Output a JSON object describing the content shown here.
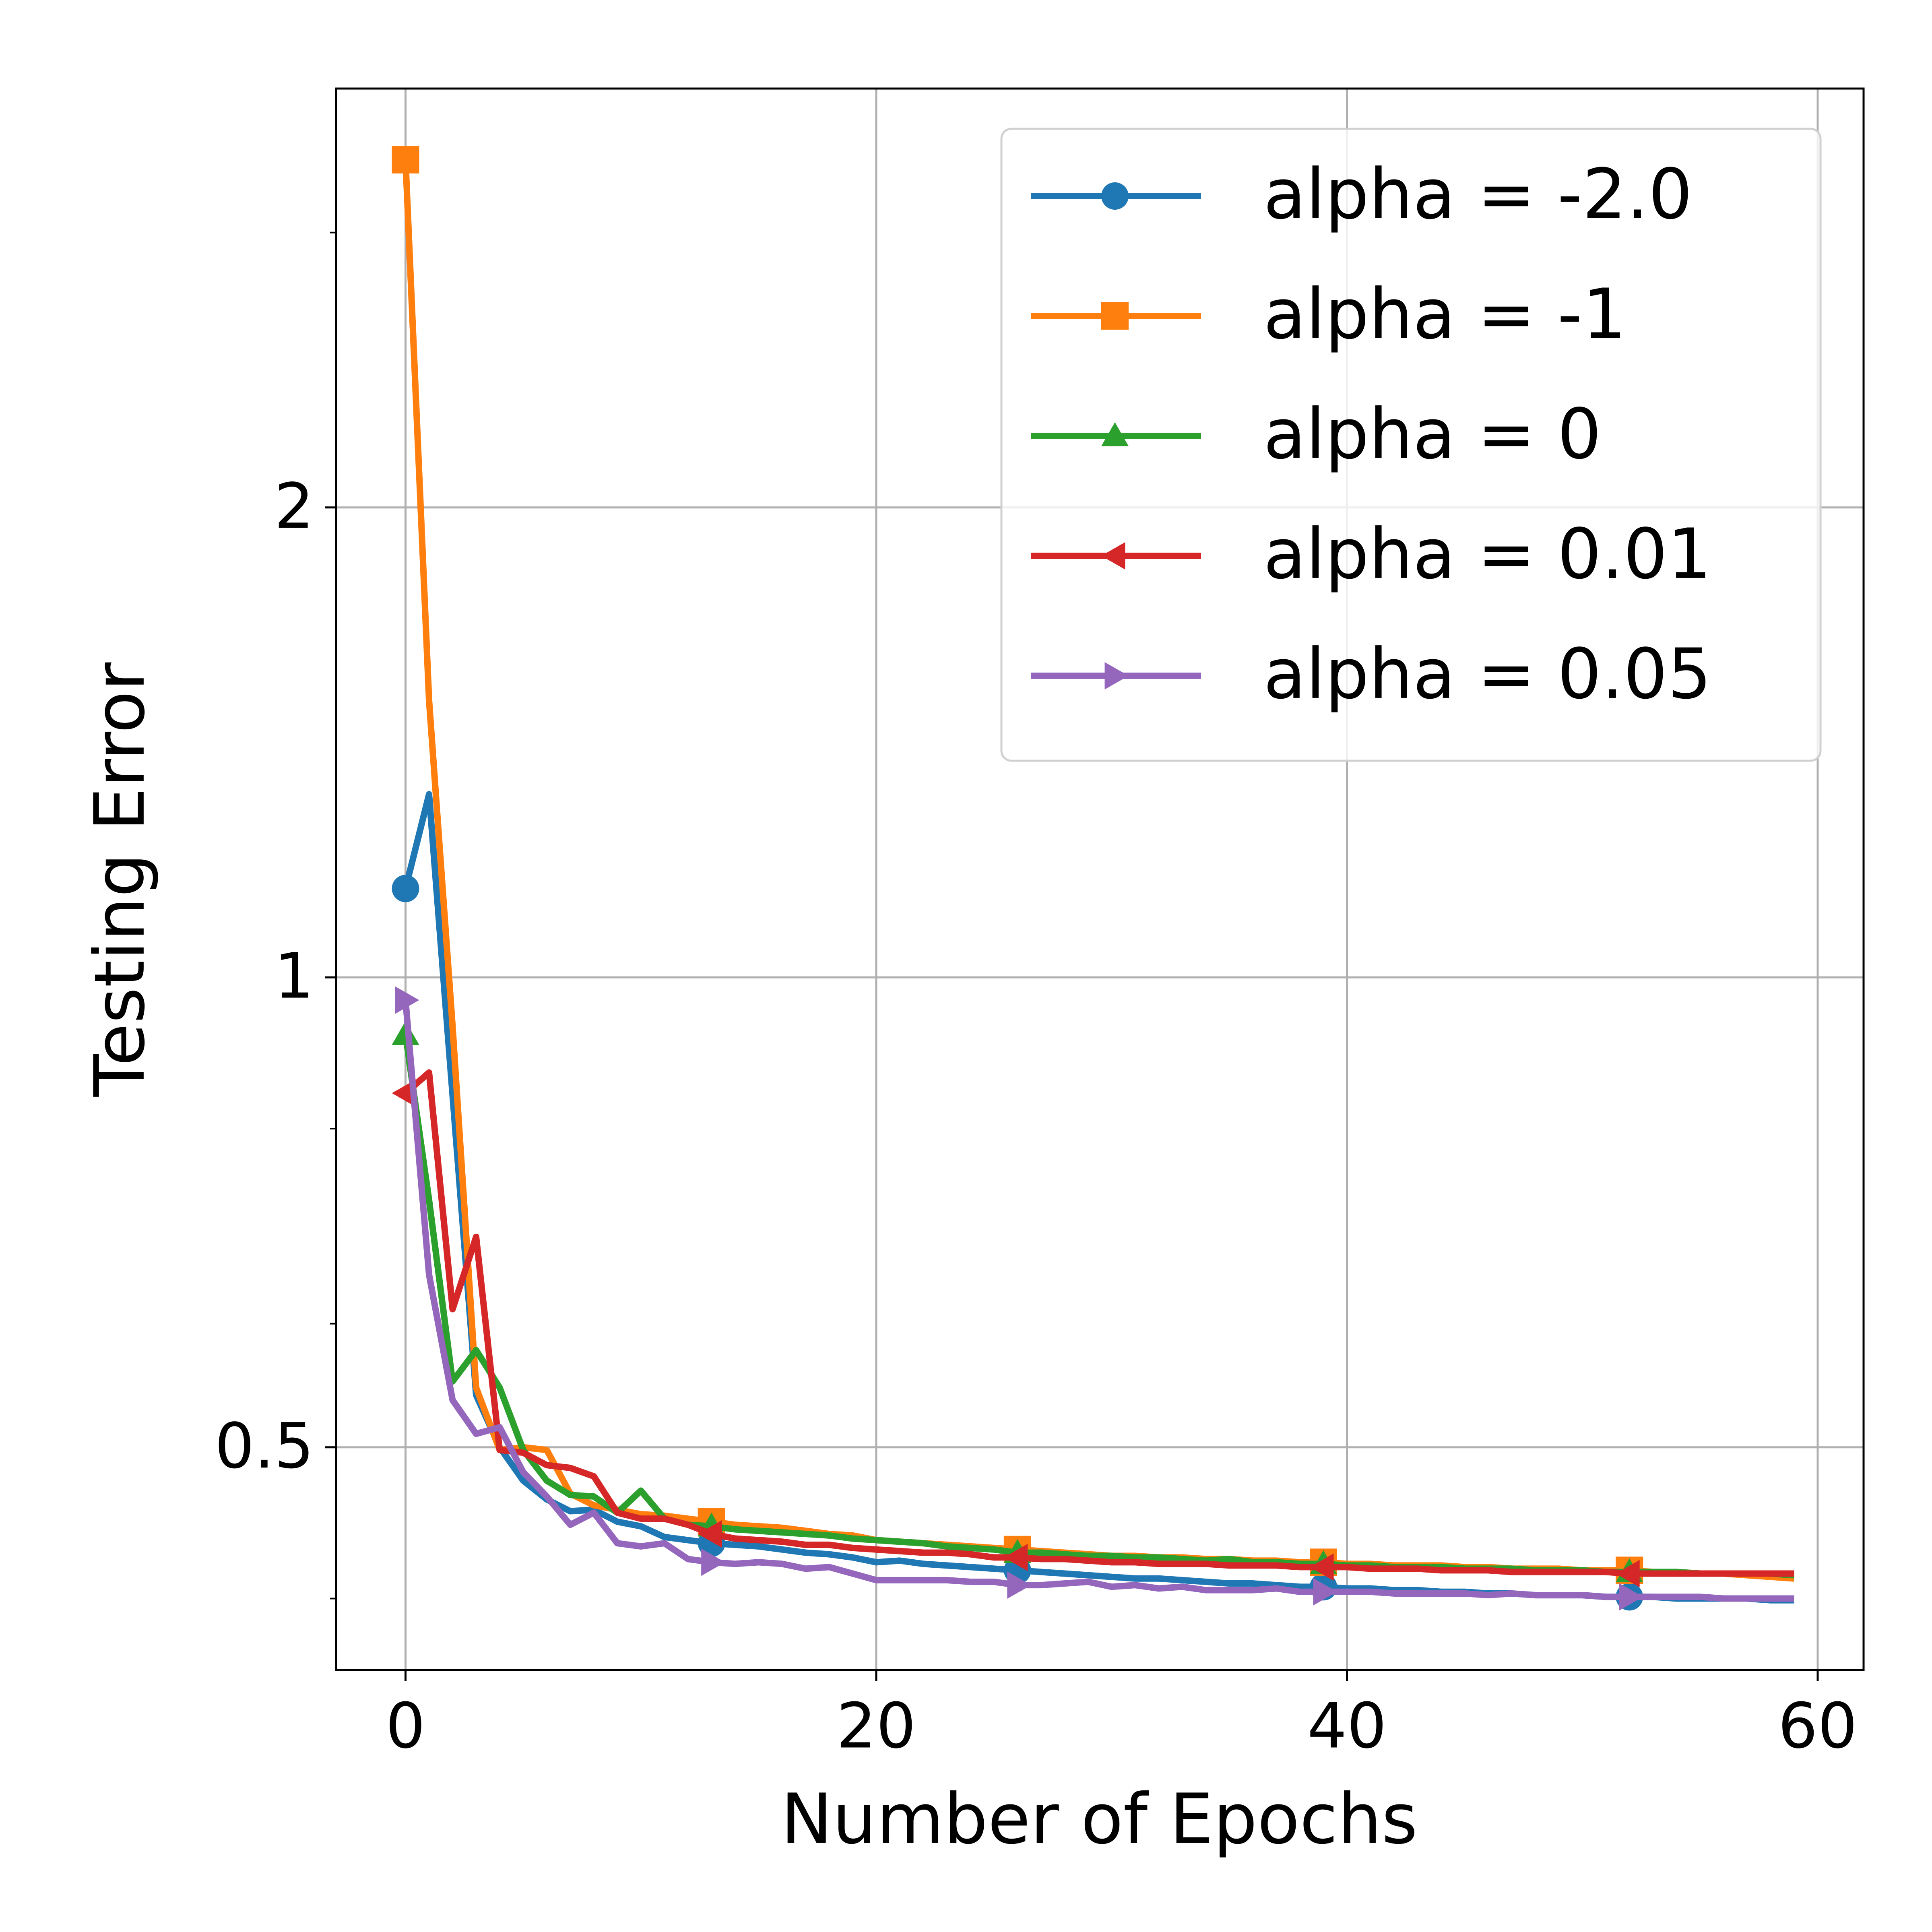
{
  "chart_data": {
    "type": "line",
    "xlabel": "Number of Epochs",
    "ylabel": "Testing Error",
    "x": [
      0,
      1,
      2,
      3,
      4,
      5,
      6,
      7,
      8,
      9,
      10,
      11,
      12,
      13,
      14,
      15,
      16,
      17,
      18,
      19,
      20,
      21,
      22,
      23,
      24,
      25,
      26,
      27,
      28,
      29,
      30,
      31,
      32,
      33,
      34,
      35,
      36,
      37,
      38,
      39,
      40,
      41,
      42,
      43,
      44,
      45,
      46,
      47,
      48,
      49,
      50,
      51,
      52,
      53,
      54,
      55,
      56,
      57,
      58,
      59
    ],
    "series": [
      {
        "name": "alpha = -2.0",
        "color": "#1f77b4",
        "marker": "o",
        "values": [
          1.14,
          1.31,
          0.84,
          0.54,
          0.5,
          0.476,
          0.463,
          0.455,
          0.456,
          0.448,
          0.445,
          0.438,
          0.436,
          0.434,
          0.433,
          0.432,
          0.43,
          0.428,
          0.427,
          0.425,
          0.422,
          0.423,
          0.421,
          0.42,
          0.419,
          0.418,
          0.417,
          0.416,
          0.415,
          0.414,
          0.413,
          0.412,
          0.412,
          0.411,
          0.41,
          0.409,
          0.409,
          0.408,
          0.407,
          0.407,
          0.406,
          0.406,
          0.405,
          0.405,
          0.404,
          0.404,
          0.403,
          0.403,
          0.402,
          0.402,
          0.402,
          0.401,
          0.401,
          0.401,
          0.4,
          0.4,
          0.4,
          0.4,
          0.399,
          0.399
        ]
      },
      {
        "name": "alpha = -1",
        "color": "#ff7f0e",
        "marker": "s",
        "values": [
          3.34,
          1.505,
          0.93,
          0.546,
          0.498,
          0.5,
          0.498,
          0.467,
          0.459,
          0.456,
          0.453,
          0.452,
          0.45,
          0.448,
          0.446,
          0.445,
          0.444,
          0.442,
          0.44,
          0.439,
          0.436,
          0.435,
          0.434,
          0.433,
          0.432,
          0.431,
          0.43,
          0.429,
          0.428,
          0.427,
          0.426,
          0.426,
          0.425,
          0.425,
          0.424,
          0.424,
          0.423,
          0.423,
          0.422,
          0.422,
          0.421,
          0.421,
          0.42,
          0.42,
          0.42,
          0.419,
          0.419,
          0.418,
          0.418,
          0.418,
          0.417,
          0.417,
          0.417,
          0.416,
          0.416,
          0.415,
          0.415,
          0.414,
          0.413,
          0.412
        ]
      },
      {
        "name": "alpha = 0",
        "color": "#2ca02c",
        "marker": "^",
        "values": [
          0.919,
          0.72,
          0.551,
          0.577,
          0.546,
          0.498,
          0.476,
          0.466,
          0.465,
          0.454,
          0.469,
          0.45,
          0.446,
          0.445,
          0.443,
          0.442,
          0.441,
          0.44,
          0.439,
          0.437,
          0.436,
          0.435,
          0.434,
          0.432,
          0.431,
          0.43,
          0.428,
          0.428,
          0.427,
          0.426,
          0.426,
          0.425,
          0.425,
          0.424,
          0.423,
          0.424,
          0.422,
          0.422,
          0.421,
          0.421,
          0.42,
          0.42,
          0.419,
          0.419,
          0.419,
          0.418,
          0.418,
          0.418,
          0.417,
          0.417,
          0.417,
          0.416,
          0.416,
          0.416,
          0.416,
          0.415,
          0.415,
          0.415,
          0.415,
          0.414
        ]
      },
      {
        "name": "alpha = 0.01",
        "color": "#d62728",
        "marker": "<",
        "values": [
          0.843,
          0.869,
          0.613,
          0.682,
          0.498,
          0.496,
          0.487,
          0.485,
          0.479,
          0.454,
          0.45,
          0.45,
          0.446,
          0.44,
          0.437,
          0.436,
          0.435,
          0.433,
          0.433,
          0.431,
          0.43,
          0.429,
          0.428,
          0.428,
          0.427,
          0.425,
          0.425,
          0.424,
          0.424,
          0.423,
          0.422,
          0.422,
          0.421,
          0.421,
          0.421,
          0.42,
          0.42,
          0.42,
          0.419,
          0.419,
          0.419,
          0.418,
          0.418,
          0.418,
          0.417,
          0.417,
          0.417,
          0.416,
          0.416,
          0.416,
          0.416,
          0.416,
          0.415,
          0.415,
          0.415,
          0.415,
          0.415,
          0.415,
          0.415,
          0.415
        ]
      },
      {
        "name": "alpha = 0.05",
        "color": "#9467bd",
        "marker": ">",
        "values": [
          0.967,
          0.645,
          0.536,
          0.51,
          0.515,
          0.482,
          0.465,
          0.446,
          0.454,
          0.434,
          0.432,
          0.434,
          0.424,
          0.422,
          0.421,
          0.422,
          0.421,
          0.418,
          0.419,
          0.415,
          0.411,
          0.411,
          0.411,
          0.411,
          0.41,
          0.41,
          0.408,
          0.408,
          0.409,
          0.41,
          0.407,
          0.408,
          0.406,
          0.407,
          0.405,
          0.405,
          0.405,
          0.406,
          0.404,
          0.404,
          0.404,
          0.404,
          0.403,
          0.403,
          0.403,
          0.403,
          0.402,
          0.403,
          0.402,
          0.402,
          0.402,
          0.401,
          0.401,
          0.401,
          0.401,
          0.401,
          0.4,
          0.4,
          0.4,
          0.4
        ]
      }
    ],
    "markevery": 13,
    "xlim": [
      -2.95,
      61.95
    ],
    "xticks": [
      0,
      20,
      40,
      60
    ],
    "ylim": [
      0.36,
      3.71
    ],
    "yscale": "log",
    "yticks": [
      0.5,
      1,
      2
    ],
    "yminorticks": [
      0.4,
      0.6,
      0.8,
      3
    ],
    "grid": true,
    "legend": "upper right"
  }
}
